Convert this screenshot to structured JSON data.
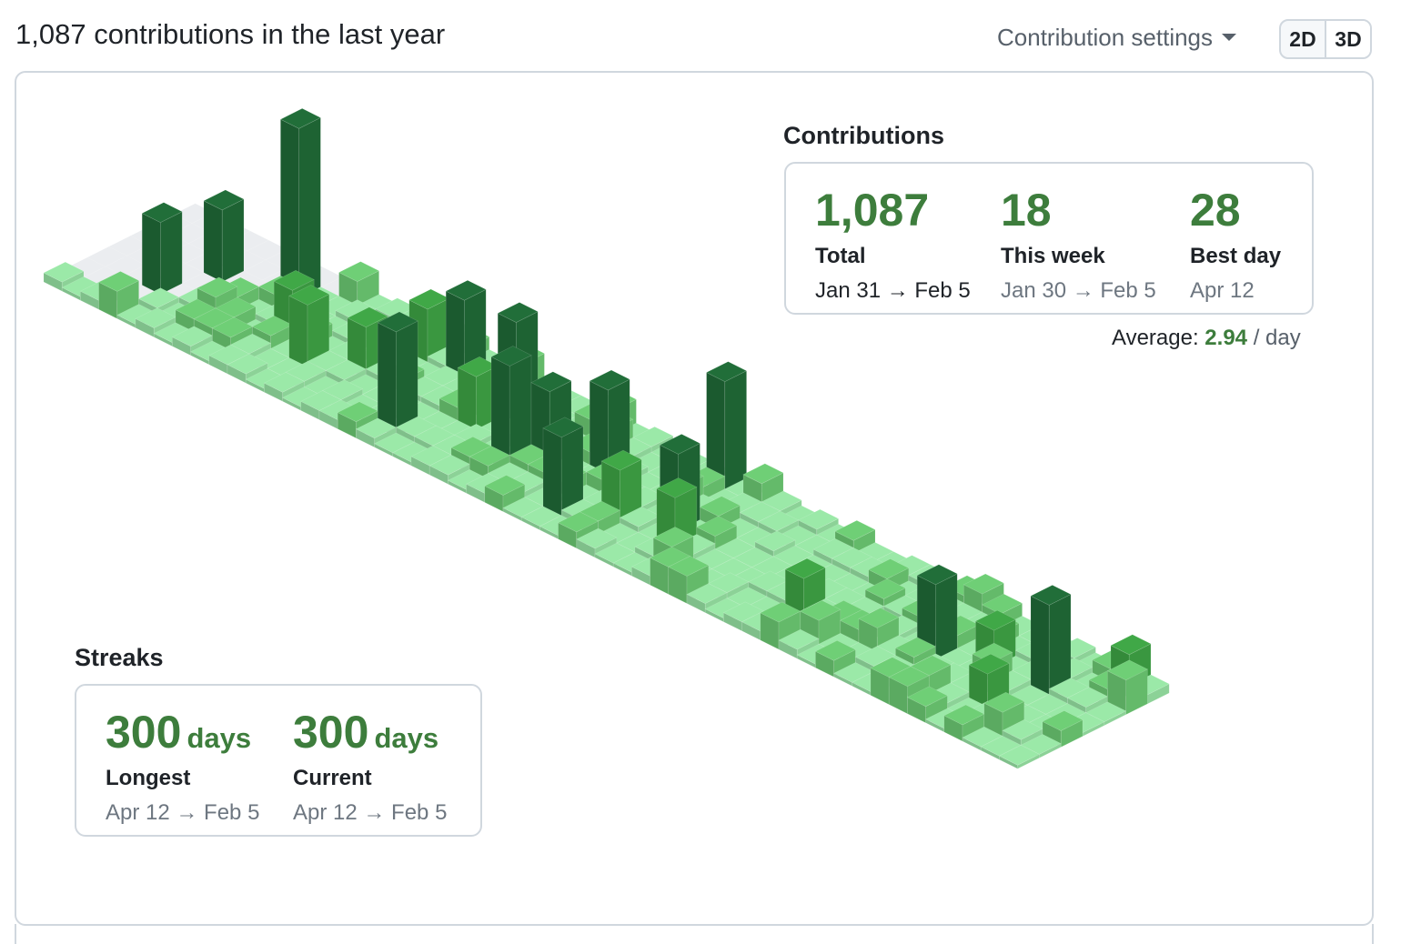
{
  "header": {
    "title": "1,087 contributions in the last year",
    "settings_label": "Contribution settings",
    "view_toggle": {
      "options": [
        "2D",
        "3D"
      ],
      "selected": "3D"
    }
  },
  "contributions": {
    "title": "Contributions",
    "stats": [
      {
        "value": "1,087",
        "label": "Total",
        "range": "Jan 31 → Feb 5"
      },
      {
        "value": "18",
        "label": "This week",
        "range": "Jan 30 → Feb 5"
      },
      {
        "value": "28",
        "label": "Best day",
        "range": "Apr 12"
      }
    ],
    "average_label": "Average:",
    "average_value": "2.94",
    "average_unit": "/ day"
  },
  "streaks": {
    "title": "Streaks",
    "stats": [
      {
        "value": "300",
        "unit": "days",
        "label": "Longest",
        "range": "Apr 12 → Feb 5"
      },
      {
        "value": "300",
        "unit": "days",
        "label": "Current",
        "range": "Apr 12 → Feb 5"
      }
    ]
  },
  "colors": {
    "accent": "#3d7d3c",
    "empty": "#ebedf0",
    "level1": "#9be9a8",
    "level2": "#6fcf76",
    "level3": "#40a847",
    "level4": "#216e39",
    "border": "#d0d7de"
  }
}
